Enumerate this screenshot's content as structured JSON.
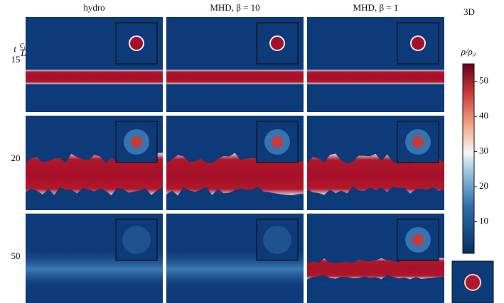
{
  "figure_label": "3D",
  "columns": [
    "hydro",
    "MHD, β = 10",
    "MHD, β = 1"
  ],
  "row_axis_label": {
    "symbol": "t",
    "numerator": "c₀",
    "denominator": "L"
  },
  "rows": [
    "15",
    "20",
    "50"
  ],
  "colorbar": {
    "label": "ρ/ρ₀",
    "range": [
      1,
      55
    ],
    "ticks": [
      10,
      20,
      30,
      40,
      50
    ]
  }
}
